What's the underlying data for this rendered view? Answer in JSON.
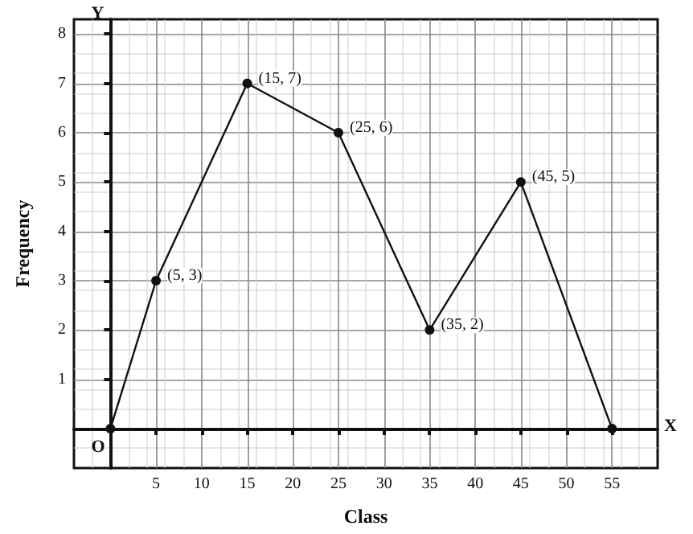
{
  "chart_data": {
    "type": "line",
    "xlabel": "Class",
    "ylabel": "Frequency",
    "x": [
      0,
      5,
      15,
      25,
      35,
      45,
      55
    ],
    "series": [
      {
        "color": "#111111",
        "values": [
          0,
          3,
          7,
          6,
          2,
          5,
          0
        ]
      }
    ],
    "xlim": [
      -4,
      60
    ],
    "ylim": [
      -0.8,
      8.3
    ],
    "xticks": [
      5,
      10,
      15,
      20,
      25,
      30,
      35,
      40,
      45,
      50,
      55
    ],
    "yticks": [
      1,
      2,
      3,
      4,
      5,
      6,
      7,
      8
    ],
    "grid": true,
    "marker": "circle",
    "line_style": "solid",
    "annotations": [
      "O",
      "X",
      "Y",
      {
        "text": "(5, 3)",
        "x": 5,
        "y": 3
      },
      {
        "text": "(15, 7)",
        "x": 15,
        "y": 7
      },
      {
        "text": "(25, 6)",
        "x": 25,
        "y": 6
      },
      {
        "text": "(35, 2)",
        "x": 35,
        "y": 2
      },
      {
        "text": "(45, 5)",
        "x": 45,
        "y": 5
      }
    ]
  }
}
